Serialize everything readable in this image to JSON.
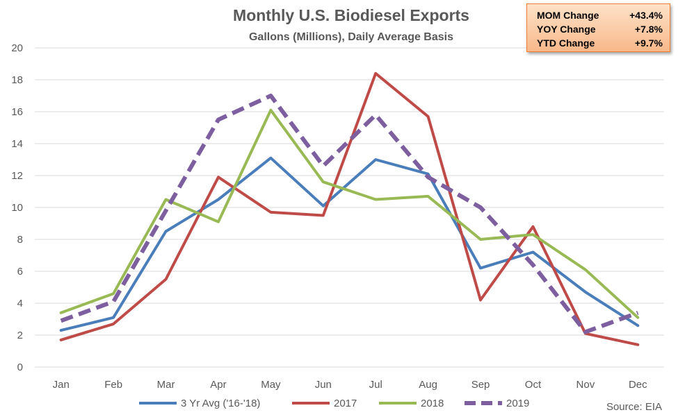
{
  "title": "Monthly U.S. Biodiesel Exports",
  "subtitle": "Gallons (Millions), Daily Average Basis",
  "source": "Source: EIA",
  "stats": [
    {
      "label": "MOM Change",
      "value": "+43.4%"
    },
    {
      "label": "YOY Change",
      "value": "+7.8%"
    },
    {
      "label": "YTD Change",
      "value": "+9.7%"
    }
  ],
  "chart_data": {
    "type": "line",
    "title": "Monthly U.S. Biodiesel Exports",
    "subtitle": "Gallons (Millions), Daily Average Basis",
    "categories": [
      "Jan",
      "Feb",
      "Mar",
      "Apr",
      "May",
      "Jun",
      "Jul",
      "Aug",
      "Sep",
      "Oct",
      "Nov",
      "Dec"
    ],
    "ylim": [
      0,
      20
    ],
    "yticks": [
      0,
      2,
      4,
      6,
      8,
      10,
      12,
      14,
      16,
      18,
      20
    ],
    "grid": true,
    "legend_position": "bottom",
    "series": [
      {
        "name": "3 Yr Avg ('16-'18)",
        "color": "#4a7ebb",
        "dashed": false,
        "values": [
          2.3,
          3.1,
          8.5,
          10.5,
          13.1,
          10.1,
          13.0,
          12.1,
          6.2,
          7.2,
          4.7,
          2.6
        ]
      },
      {
        "name": "2017",
        "color": "#be4b48",
        "dashed": false,
        "values": [
          1.7,
          2.7,
          5.5,
          11.9,
          9.7,
          9.5,
          18.4,
          15.7,
          4.2,
          8.8,
          2.1,
          1.4
        ]
      },
      {
        "name": "2018",
        "color": "#98b954",
        "dashed": false,
        "values": [
          3.4,
          4.6,
          10.5,
          9.1,
          16.1,
          11.6,
          10.5,
          10.7,
          8.0,
          8.3,
          6.1,
          3.1
        ]
      },
      {
        "name": "2019",
        "color": "#7d5fa0",
        "dashed": true,
        "values": [
          2.9,
          4.1,
          9.8,
          15.5,
          17.0,
          12.6,
          15.8,
          11.9,
          10.0,
          6.4,
          2.2,
          3.4
        ]
      }
    ]
  }
}
